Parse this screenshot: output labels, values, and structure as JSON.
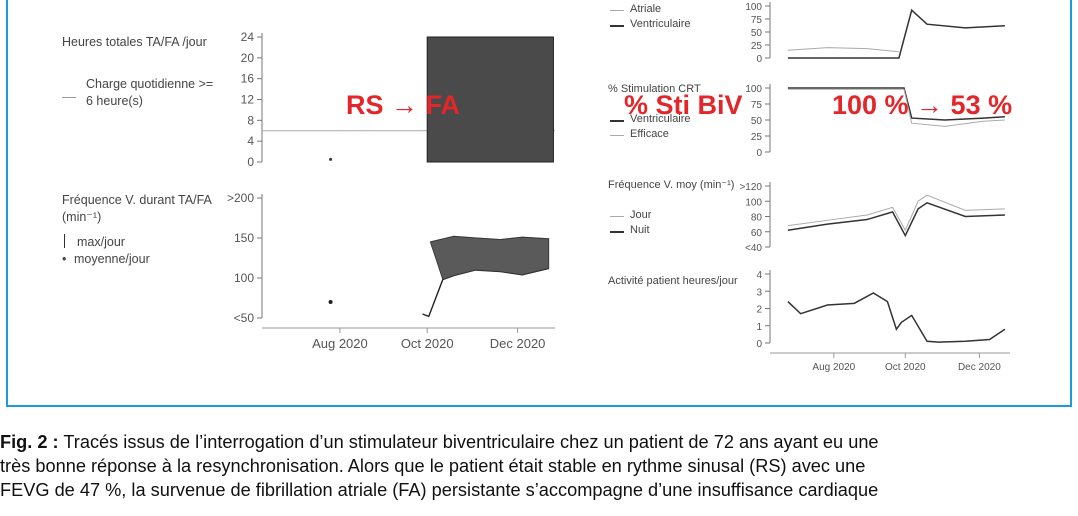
{
  "caption": {
    "label": "Fig. 2 :",
    "line1": "Tracés issus de l’interrogation d’un stimulateur biventriculaire chez un patient de 72 ans ayant eu une",
    "line2": "très bonne réponse à la resynchronisation. Alors que le patient était stable en rythme sinusal (RS) avec une",
    "line3": "FEVG de 47 %, la survenue de fibrillation atriale (FA) persistante s’accompagne d’une insuffisance cardiaque"
  },
  "overlays": {
    "rs_fa": "RS → FA",
    "sti_biv": "% Sti BiV",
    "percent": "100 % → 53 %"
  },
  "left_panel": {
    "top_title": "Heures totales TA/FA /jour",
    "top_legend": "Charge quotidienne >= 6 heure(s)",
    "bottom_title": "Fréquence V. durant TA/FA (min⁻¹)",
    "bottom_legend_1": "max/jour",
    "bottom_legend_2": "moyenne/jour"
  },
  "right_panel": {
    "legend_atriale": "Atriale",
    "legend_ventriculaire": "Ventriculaire",
    "stim_title": "% Stimulation CRT",
    "stim_legend_1": "Ventriculaire",
    "stim_legend_2": "Efficace",
    "freq_title": "Fréquence V. moy (min⁻¹)",
    "freq_legend_1": "Jour",
    "freq_legend_2": "Nuit",
    "act_title": "Activité patient heures/jour"
  },
  "chart_data": [
    {
      "type": "area",
      "ylabel": "Heures totales TA/FA /jour",
      "yticks": [
        0,
        4,
        8,
        12,
        16,
        20,
        24
      ],
      "ylim": [
        0,
        24
      ],
      "xlim": [
        "2020-07-01",
        "2021-01-05"
      ],
      "threshold": 6,
      "series": [
        {
          "name": "Charge quotidienne >= 6 heure(s)",
          "x": [
            "2020-07-01",
            "2021-01-05"
          ],
          "y": [
            6,
            6
          ]
        },
        {
          "name": "Heures TA/FA",
          "x": [
            "2020-08-14",
            "2020-10-14",
            "2020-10-15",
            "2021-01-04"
          ],
          "y": [
            0.5,
            0,
            24,
            24
          ]
        }
      ]
    },
    {
      "type": "line",
      "ylabel": "Fréquence V. durant TA/FA (min⁻¹)",
      "yticks": [
        ">200",
        "150",
        "100",
        "<50"
      ],
      "ylim": [
        50,
        200
      ],
      "xticks": [
        "Aug 2020",
        "Oct 2020",
        "Dec 2020"
      ],
      "xlim": [
        "2020-07-01",
        "2021-01-05"
      ],
      "series": [
        {
          "name": "max/jour",
          "x": [
            "2020-10-17",
            "2020-11-01",
            "2020-11-15",
            "2020-12-01",
            "2020-12-15",
            "2021-01-01"
          ],
          "y": [
            145,
            152,
            150,
            148,
            151,
            149
          ]
        },
        {
          "name": "moyenne/jour",
          "x": [
            "2020-08-14",
            "2020-10-12",
            "2020-10-16",
            "2020-10-25",
            "2020-11-01",
            "2020-11-15",
            "2020-12-01",
            "2020-12-15",
            "2021-01-01"
          ],
          "y": [
            70,
            55,
            52,
            98,
            103,
            110,
            108,
            104,
            112
          ]
        }
      ]
    },
    {
      "type": "line",
      "yticks": [
        "100",
        "75",
        "50",
        "25",
        "0"
      ],
      "ylim": [
        0,
        100
      ],
      "xlim": [
        "2020-07-01",
        "2021-01-05"
      ],
      "series": [
        {
          "name": "Atriale",
          "x": [
            "2020-07-15",
            "2020-08-15",
            "2020-09-15",
            "2020-10-10"
          ],
          "y": [
            15,
            20,
            18,
            12
          ]
        },
        {
          "name": "Ventriculaire",
          "x": [
            "2020-07-15",
            "2020-10-10",
            "2020-10-20",
            "2020-11-01",
            "2020-12-01",
            "2021-01-01"
          ],
          "y": [
            0,
            0,
            92,
            65,
            58,
            62
          ]
        }
      ]
    },
    {
      "type": "line",
      "ylabel": "% Stimulation CRT",
      "yticks": [
        "100",
        "75",
        "50",
        "25",
        "0"
      ],
      "ylim": [
        0,
        100
      ],
      "xlim": [
        "2020-07-01",
        "2021-01-05"
      ],
      "series": [
        {
          "name": "Ventriculaire",
          "x": [
            "2020-07-15",
            "2020-10-14",
            "2020-10-20",
            "2020-11-15",
            "2020-12-15",
            "2021-01-01"
          ],
          "y": [
            100,
            100,
            53,
            50,
            53,
            55
          ]
        },
        {
          "name": "Efficace",
          "x": [
            "2020-07-15",
            "2020-10-14",
            "2020-10-20",
            "2020-11-15",
            "2020-12-15",
            "2021-01-01"
          ],
          "y": [
            98,
            98,
            45,
            40,
            48,
            50
          ]
        }
      ]
    },
    {
      "type": "line",
      "ylabel": "Fréquence V. moy (min⁻¹)",
      "yticks": [
        ">120",
        "100",
        "80",
        "60",
        "<40"
      ],
      "ylim": [
        40,
        120
      ],
      "xlim": [
        "2020-07-01",
        "2021-01-05"
      ],
      "series": [
        {
          "name": "Jour",
          "x": [
            "2020-07-15",
            "2020-08-15",
            "2020-09-15",
            "2020-10-05",
            "2020-10-15",
            "2020-10-25",
            "2020-11-01",
            "2020-12-01",
            "2021-01-01"
          ],
          "y": [
            68,
            75,
            82,
            92,
            62,
            100,
            108,
            88,
            90
          ]
        },
        {
          "name": "Nuit",
          "x": [
            "2020-07-15",
            "2020-08-15",
            "2020-09-15",
            "2020-10-05",
            "2020-10-15",
            "2020-10-25",
            "2020-11-01",
            "2020-12-01",
            "2021-01-01"
          ],
          "y": [
            62,
            70,
            76,
            86,
            55,
            90,
            98,
            80,
            82
          ]
        }
      ]
    },
    {
      "type": "line",
      "ylabel": "Activité patient heures/jour",
      "yticks": [
        "4",
        "3",
        "2",
        "1",
        "0"
      ],
      "ylim": [
        0,
        4
      ],
      "xticks": [
        "Aug 2020",
        "Oct 2020",
        "Dec 2020"
      ],
      "xlim": [
        "2020-07-01",
        "2021-01-05"
      ],
      "series": [
        {
          "name": "Activité",
          "x": [
            "2020-07-15",
            "2020-07-25",
            "2020-08-15",
            "2020-09-05",
            "2020-09-20",
            "2020-10-01",
            "2020-10-08",
            "2020-10-12",
            "2020-10-20",
            "2020-11-01",
            "2020-11-10",
            "2020-12-01",
            "2020-12-20",
            "2021-01-01"
          ],
          "y": [
            2.4,
            1.7,
            2.2,
            2.3,
            2.9,
            2.4,
            0.8,
            1.2,
            1.6,
            0.1,
            0.05,
            0.1,
            0.2,
            0.8
          ]
        }
      ]
    }
  ]
}
